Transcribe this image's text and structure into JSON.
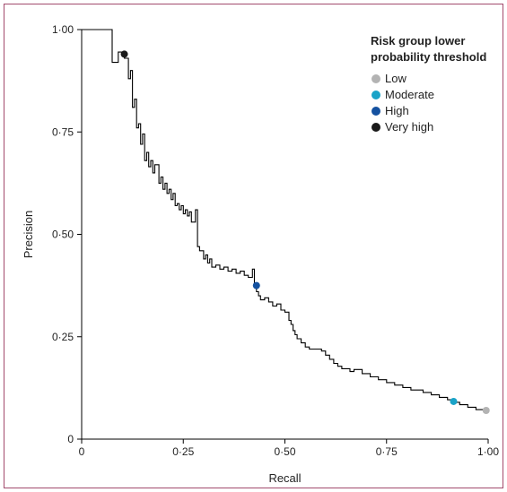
{
  "chart_data": {
    "type": "line",
    "xlabel": "Recall",
    "ylabel": "Precision",
    "xlim": [
      0,
      1
    ],
    "ylim": [
      0,
      1
    ],
    "x_ticks": [
      "0",
      "0·25",
      "0·50",
      "0·75",
      "1·00"
    ],
    "y_ticks": [
      "0",
      "0·25",
      "0·50",
      "0·75",
      "1·00"
    ],
    "grid": false,
    "legend": {
      "title_line1": "Risk group lower",
      "title_line2": "probability threshold",
      "placement": "top-right",
      "items": [
        {
          "label": "Low",
          "color": "#b3b3b3"
        },
        {
          "label": "Moderate",
          "color": "#1aa3c8"
        },
        {
          "label": "High",
          "color": "#1451a0"
        },
        {
          "label": "Very high",
          "color": "#1a1a1a"
        }
      ]
    },
    "curve": {
      "color": "#000000",
      "points": [
        [
          0.0,
          1.0
        ],
        [
          0.075,
          1.0
        ],
        [
          0.075,
          0.92
        ],
        [
          0.09,
          0.92
        ],
        [
          0.09,
          0.945
        ],
        [
          0.105,
          0.945
        ],
        [
          0.105,
          0.93
        ],
        [
          0.115,
          0.93
        ],
        [
          0.115,
          0.88
        ],
        [
          0.12,
          0.88
        ],
        [
          0.12,
          0.9
        ],
        [
          0.125,
          0.9
        ],
        [
          0.125,
          0.81
        ],
        [
          0.13,
          0.81
        ],
        [
          0.13,
          0.83
        ],
        [
          0.135,
          0.83
        ],
        [
          0.135,
          0.76
        ],
        [
          0.14,
          0.76
        ],
        [
          0.14,
          0.77
        ],
        [
          0.145,
          0.77
        ],
        [
          0.145,
          0.72
        ],
        [
          0.15,
          0.72
        ],
        [
          0.15,
          0.745
        ],
        [
          0.155,
          0.745
        ],
        [
          0.155,
          0.68
        ],
        [
          0.16,
          0.68
        ],
        [
          0.16,
          0.7
        ],
        [
          0.165,
          0.7
        ],
        [
          0.165,
          0.665
        ],
        [
          0.17,
          0.665
        ],
        [
          0.17,
          0.68
        ],
        [
          0.175,
          0.68
        ],
        [
          0.175,
          0.65
        ],
        [
          0.18,
          0.65
        ],
        [
          0.18,
          0.67
        ],
        [
          0.19,
          0.67
        ],
        [
          0.19,
          0.625
        ],
        [
          0.195,
          0.625
        ],
        [
          0.195,
          0.64
        ],
        [
          0.2,
          0.64
        ],
        [
          0.2,
          0.61
        ],
        [
          0.205,
          0.61
        ],
        [
          0.205,
          0.625
        ],
        [
          0.21,
          0.625
        ],
        [
          0.21,
          0.6
        ],
        [
          0.215,
          0.6
        ],
        [
          0.215,
          0.61
        ],
        [
          0.22,
          0.61
        ],
        [
          0.22,
          0.585
        ],
        [
          0.225,
          0.585
        ],
        [
          0.225,
          0.6
        ],
        [
          0.23,
          0.6
        ],
        [
          0.23,
          0.57
        ],
        [
          0.235,
          0.57
        ],
        [
          0.235,
          0.575
        ],
        [
          0.24,
          0.575
        ],
        [
          0.24,
          0.56
        ],
        [
          0.245,
          0.56
        ],
        [
          0.245,
          0.57
        ],
        [
          0.25,
          0.57
        ],
        [
          0.25,
          0.55
        ],
        [
          0.255,
          0.55
        ],
        [
          0.255,
          0.56
        ],
        [
          0.26,
          0.56
        ],
        [
          0.26,
          0.545
        ],
        [
          0.265,
          0.545
        ],
        [
          0.265,
          0.555
        ],
        [
          0.27,
          0.555
        ],
        [
          0.27,
          0.53
        ],
        [
          0.28,
          0.53
        ],
        [
          0.28,
          0.56
        ],
        [
          0.285,
          0.56
        ],
        [
          0.285,
          0.47
        ],
        [
          0.29,
          0.47
        ],
        [
          0.29,
          0.46
        ],
        [
          0.3,
          0.46
        ],
        [
          0.3,
          0.44
        ],
        [
          0.305,
          0.44
        ],
        [
          0.305,
          0.45
        ],
        [
          0.31,
          0.45
        ],
        [
          0.31,
          0.43
        ],
        [
          0.315,
          0.43
        ],
        [
          0.315,
          0.44
        ],
        [
          0.32,
          0.44
        ],
        [
          0.32,
          0.42
        ],
        [
          0.33,
          0.42
        ],
        [
          0.33,
          0.425
        ],
        [
          0.34,
          0.425
        ],
        [
          0.34,
          0.415
        ],
        [
          0.35,
          0.415
        ],
        [
          0.35,
          0.42
        ],
        [
          0.36,
          0.42
        ],
        [
          0.36,
          0.41
        ],
        [
          0.37,
          0.41
        ],
        [
          0.37,
          0.415
        ],
        [
          0.38,
          0.415
        ],
        [
          0.38,
          0.405
        ],
        [
          0.39,
          0.405
        ],
        [
          0.39,
          0.41
        ],
        [
          0.4,
          0.41
        ],
        [
          0.4,
          0.4
        ],
        [
          0.41,
          0.4
        ],
        [
          0.41,
          0.395
        ],
        [
          0.42,
          0.395
        ],
        [
          0.42,
          0.415
        ],
        [
          0.425,
          0.415
        ],
        [
          0.425,
          0.37
        ],
        [
          0.43,
          0.37
        ],
        [
          0.43,
          0.36
        ],
        [
          0.435,
          0.36
        ],
        [
          0.435,
          0.35
        ],
        [
          0.44,
          0.35
        ],
        [
          0.44,
          0.34
        ],
        [
          0.45,
          0.34
        ],
        [
          0.45,
          0.345
        ],
        [
          0.46,
          0.345
        ],
        [
          0.46,
          0.335
        ],
        [
          0.47,
          0.335
        ],
        [
          0.47,
          0.325
        ],
        [
          0.48,
          0.325
        ],
        [
          0.48,
          0.33
        ],
        [
          0.49,
          0.33
        ],
        [
          0.49,
          0.315
        ],
        [
          0.5,
          0.315
        ],
        [
          0.5,
          0.31
        ],
        [
          0.51,
          0.31
        ],
        [
          0.51,
          0.29
        ],
        [
          0.515,
          0.29
        ],
        [
          0.515,
          0.28
        ],
        [
          0.52,
          0.28
        ],
        [
          0.52,
          0.265
        ],
        [
          0.525,
          0.265
        ],
        [
          0.525,
          0.255
        ],
        [
          0.53,
          0.255
        ],
        [
          0.53,
          0.245
        ],
        [
          0.54,
          0.245
        ],
        [
          0.54,
          0.235
        ],
        [
          0.55,
          0.235
        ],
        [
          0.55,
          0.225
        ],
        [
          0.56,
          0.225
        ],
        [
          0.56,
          0.22
        ],
        [
          0.59,
          0.22
        ],
        [
          0.59,
          0.215
        ],
        [
          0.6,
          0.215
        ],
        [
          0.6,
          0.205
        ],
        [
          0.61,
          0.205
        ],
        [
          0.61,
          0.195
        ],
        [
          0.62,
          0.195
        ],
        [
          0.62,
          0.185
        ],
        [
          0.63,
          0.185
        ],
        [
          0.63,
          0.178
        ],
        [
          0.64,
          0.178
        ],
        [
          0.64,
          0.172
        ],
        [
          0.66,
          0.172
        ],
        [
          0.66,
          0.165
        ],
        [
          0.67,
          0.165
        ],
        [
          0.67,
          0.17
        ],
        [
          0.69,
          0.17
        ],
        [
          0.69,
          0.16
        ],
        [
          0.71,
          0.16
        ],
        [
          0.71,
          0.152
        ],
        [
          0.73,
          0.152
        ],
        [
          0.73,
          0.145
        ],
        [
          0.75,
          0.145
        ],
        [
          0.75,
          0.138
        ],
        [
          0.77,
          0.138
        ],
        [
          0.77,
          0.132
        ],
        [
          0.79,
          0.132
        ],
        [
          0.79,
          0.126
        ],
        [
          0.81,
          0.126
        ],
        [
          0.81,
          0.12
        ],
        [
          0.84,
          0.12
        ],
        [
          0.84,
          0.114
        ],
        [
          0.86,
          0.114
        ],
        [
          0.86,
          0.108
        ],
        [
          0.88,
          0.108
        ],
        [
          0.88,
          0.102
        ],
        [
          0.9,
          0.102
        ],
        [
          0.9,
          0.096
        ],
        [
          0.915,
          0.096
        ],
        [
          0.915,
          0.09
        ],
        [
          0.93,
          0.09
        ],
        [
          0.93,
          0.084
        ],
        [
          0.95,
          0.084
        ],
        [
          0.95,
          0.078
        ],
        [
          0.97,
          0.078
        ],
        [
          0.97,
          0.072
        ],
        [
          0.99,
          0.072
        ],
        [
          0.99,
          0.068
        ],
        [
          1.0,
          0.068
        ]
      ]
    },
    "markers": [
      {
        "group": "Very high",
        "recall": 0.105,
        "precision": 0.94,
        "color": "#1a1a1a"
      },
      {
        "group": "High",
        "recall": 0.43,
        "precision": 0.375,
        "color": "#1451a0"
      },
      {
        "group": "Moderate",
        "recall": 0.915,
        "precision": 0.092,
        "color": "#1aa3c8"
      },
      {
        "group": "Low",
        "recall": 0.995,
        "precision": 0.07,
        "color": "#b3b3b3"
      }
    ]
  }
}
